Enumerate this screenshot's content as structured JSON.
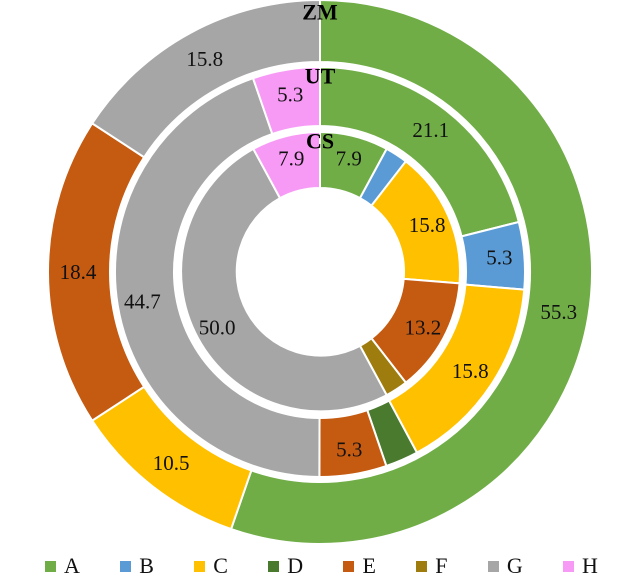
{
  "chart_data": {
    "type": "pie",
    "subtype": "nested-donut",
    "title": "",
    "units": "percent",
    "direction": "clockwise",
    "start_angle_deg": 0,
    "rings_order_outer_to_inner": [
      "ZM",
      "UT",
      "CS"
    ],
    "rings": [
      {
        "name": "ZM",
        "inner_radius": 210,
        "outer_radius": 272,
        "title_radius": 260,
        "label_radius": 242,
        "segments": [
          {
            "category": "A",
            "value": 55.3,
            "label": "55.3"
          },
          {
            "category": "C",
            "value": 10.5,
            "label": "10.5"
          },
          {
            "category": "E",
            "value": 18.4,
            "label": "18.4"
          },
          {
            "category": "G",
            "value": 15.8,
            "label": "15.8"
          }
        ]
      },
      {
        "name": "UT",
        "inner_radius": 146,
        "outer_radius": 205,
        "title_radius": 196,
        "label_radius": 180,
        "segments": [
          {
            "category": "A",
            "value": 21.1,
            "label": "21.1"
          },
          {
            "category": "B",
            "value": 5.3,
            "label": "5.3"
          },
          {
            "category": "C",
            "value": 15.8,
            "label": "15.8"
          },
          {
            "category": "D",
            "value": 2.6,
            "label": ""
          },
          {
            "category": "E",
            "value": 5.3,
            "label": "5.3"
          },
          {
            "category": "G",
            "value": 44.7,
            "label": "44.7"
          },
          {
            "category": "H",
            "value": 5.3,
            "label": "5.3"
          }
        ]
      },
      {
        "name": "CS",
        "inner_radius": 84,
        "outer_radius": 140,
        "title_radius": 131,
        "label_radius": 117,
        "segments": [
          {
            "category": "A",
            "value": 7.9,
            "label": "7.9"
          },
          {
            "category": "B",
            "value": 2.6,
            "label": ""
          },
          {
            "category": "C",
            "value": 15.8,
            "label": "15.8"
          },
          {
            "category": "E",
            "value": 13.2,
            "label": "13.2"
          },
          {
            "category": "F",
            "value": 2.6,
            "label": ""
          },
          {
            "category": "G",
            "value": 50.0,
            "label": "50.0"
          },
          {
            "category": "H",
            "value": 7.9,
            "label": "7.9"
          }
        ]
      }
    ],
    "legend": [
      {
        "label": "A",
        "color": "#70ad47"
      },
      {
        "label": "B",
        "color": "#5b9bd5"
      },
      {
        "label": "C",
        "color": "#ffc000"
      },
      {
        "label": "D",
        "color": "#4a7a2e"
      },
      {
        "label": "E",
        "color": "#c55a11"
      },
      {
        "label": "F",
        "color": "#9e7c0e"
      },
      {
        "label": "G",
        "color": "#a6a6a6"
      },
      {
        "label": "H",
        "color": "#f79af5"
      }
    ],
    "legend_position": "bottom"
  },
  "colors": {
    "background": "#ffffff",
    "segment_border": "#ffffff",
    "label_text": "#111111"
  }
}
